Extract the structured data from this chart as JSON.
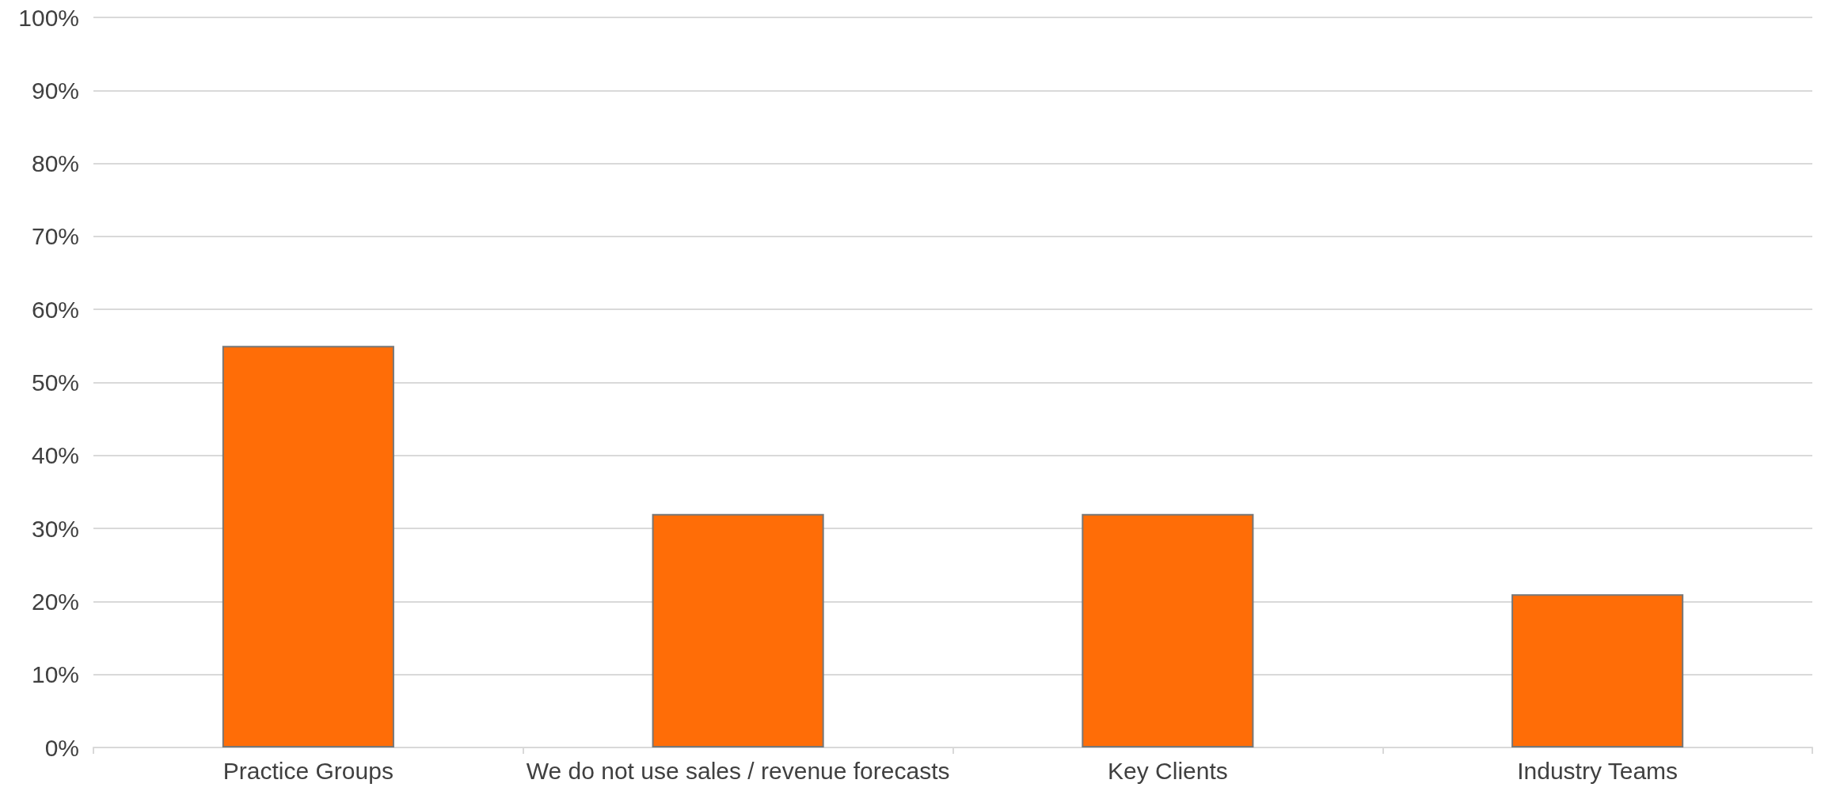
{
  "chart_data": {
    "type": "bar",
    "categories": [
      "Practice Groups",
      "We do not use sales / revenue forecasts",
      "Key Clients",
      "Industry Teams"
    ],
    "values": [
      55,
      32,
      32,
      21
    ],
    "color": "#ff6d07",
    "ylim": [
      0,
      100
    ],
    "yticks": [
      {
        "value": 0,
        "label": "0%"
      },
      {
        "value": 10,
        "label": "10%"
      },
      {
        "value": 20,
        "label": "20%"
      },
      {
        "value": 30,
        "label": "30%"
      },
      {
        "value": 40,
        "label": "40%"
      },
      {
        "value": 50,
        "label": "50%"
      },
      {
        "value": 60,
        "label": "60%"
      },
      {
        "value": 70,
        "label": "70%"
      },
      {
        "value": 80,
        "label": "80%"
      },
      {
        "value": 90,
        "label": "90%"
      },
      {
        "value": 100,
        "label": "100%"
      }
    ],
    "grid": "y"
  }
}
